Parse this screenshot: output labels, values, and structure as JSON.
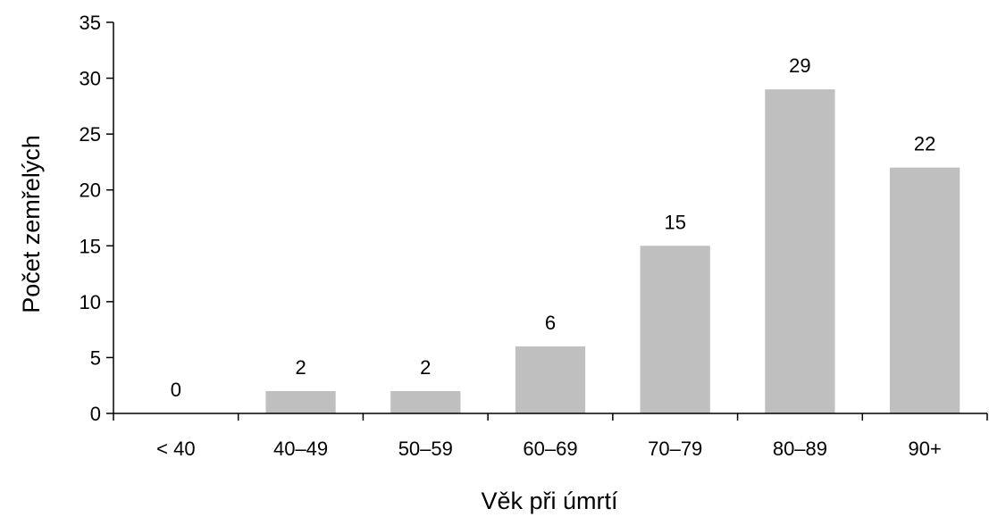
{
  "chart_data": {
    "type": "bar",
    "categories": [
      "< 40",
      "40–49",
      "50–59",
      "60–69",
      "70–79",
      "80–89",
      "90+"
    ],
    "values": [
      0,
      2,
      2,
      6,
      15,
      29,
      22
    ],
    "data_labels": [
      "0",
      "2",
      "2",
      "6",
      "15",
      "29",
      "22"
    ],
    "xlabel": "Věk při úmrtí",
    "ylabel": "Počet zemřelých",
    "ylim": [
      0,
      35
    ],
    "yticks": [
      0,
      5,
      10,
      15,
      20,
      25,
      30,
      35
    ],
    "grid": false,
    "bar_color": "#bfbfbf"
  }
}
